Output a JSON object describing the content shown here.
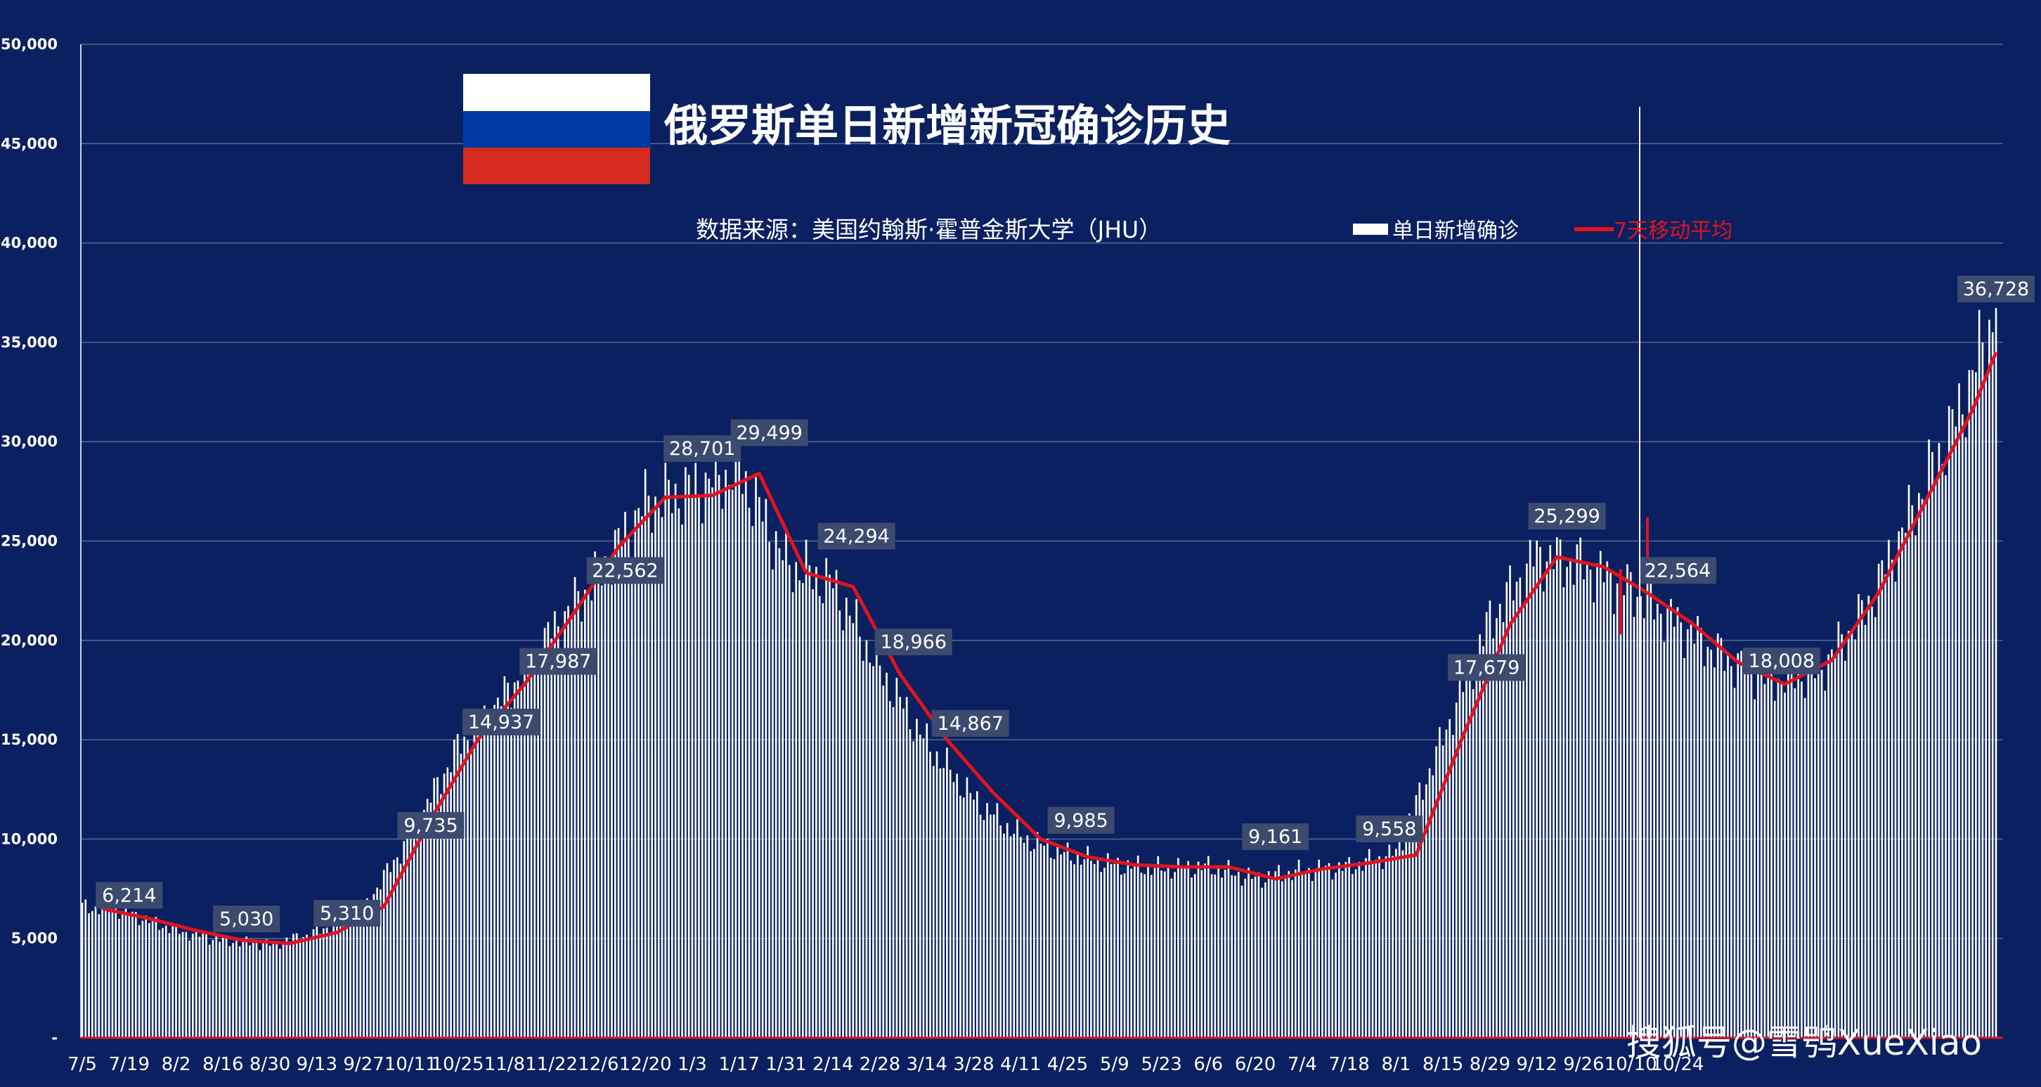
{
  "chart_data": {
    "type": "bar",
    "title": "俄罗斯单日新增新冠确诊历史",
    "source": "数据来源：美国约翰斯·霍普金斯大学（JHU）",
    "legend": [
      {
        "name": "单日新增确诊",
        "color": "#ffffff",
        "kind": "bar"
      },
      {
        "name": "7天移动平均",
        "color": "#e0141e",
        "kind": "line"
      }
    ],
    "x_tick_labels": [
      "7/5",
      "7/19",
      "8/2",
      "8/16",
      "8/30",
      "9/13",
      "9/27",
      "10/11",
      "10/25",
      "11/8",
      "11/22",
      "12/6",
      "12/20",
      "1/3",
      "1/17",
      "1/31",
      "2/14",
      "2/28",
      "3/14",
      "3/28",
      "4/11",
      "4/25",
      "5/9",
      "5/23",
      "6/6",
      "6/20",
      "7/4",
      "7/18",
      "8/1",
      "8/15",
      "8/29",
      "9/12",
      "9/26",
      "10/10",
      "10/24"
    ],
    "ylim": [
      0,
      50000
    ],
    "y_ticks": [
      0,
      5000,
      10000,
      15000,
      20000,
      25000,
      30000,
      35000,
      40000,
      45000,
      50000
    ],
    "y_tick_labels": [
      "-",
      "5,000",
      "10,000",
      "15,000",
      "20,000",
      "25,000",
      "30,000",
      "35,000",
      "40,000",
      "45,000",
      "50,000"
    ],
    "start_date": "7/5",
    "daily_anchors": [
      [
        0,
        6600
      ],
      [
        12,
        6400
      ],
      [
        28,
        5400
      ],
      [
        42,
        4900
      ],
      [
        56,
        4700
      ],
      [
        70,
        5300
      ],
      [
        84,
        6500
      ],
      [
        98,
        10200
      ],
      [
        112,
        14600
      ],
      [
        126,
        17200
      ],
      [
        140,
        20400
      ],
      [
        154,
        23300
      ],
      [
        168,
        26900
      ],
      [
        182,
        27600
      ],
      [
        196,
        28600
      ],
      [
        210,
        23900
      ],
      [
        224,
        22800
      ],
      [
        238,
        18500
      ],
      [
        252,
        14800
      ],
      [
        266,
        12000
      ],
      [
        280,
        10100
      ],
      [
        294,
        9200
      ],
      [
        308,
        8700
      ],
      [
        322,
        8500
      ],
      [
        336,
        8600
      ],
      [
        350,
        8000
      ],
      [
        364,
        8400
      ],
      [
        378,
        8600
      ],
      [
        392,
        9300
      ],
      [
        406,
        15100
      ],
      [
        420,
        21000
      ],
      [
        434,
        24300
      ],
      [
        448,
        23800
      ],
      [
        462,
        22600
      ],
      [
        476,
        20900
      ],
      [
        490,
        19100
      ],
      [
        504,
        18000
      ],
      [
        518,
        18400
      ],
      [
        532,
        21500
      ],
      [
        546,
        26500
      ],
      [
        560,
        31500
      ],
      [
        571,
        36728
      ]
    ],
    "avg_anchors": [
      [
        6,
        6500
      ],
      [
        20,
        6000
      ],
      [
        34,
        5400
      ],
      [
        48,
        4900
      ],
      [
        62,
        4750
      ],
      [
        76,
        5300
      ],
      [
        90,
        6600
      ],
      [
        104,
        11000
      ],
      [
        118,
        15000
      ],
      [
        132,
        17800
      ],
      [
        146,
        21200
      ],
      [
        160,
        24700
      ],
      [
        174,
        27200
      ],
      [
        188,
        27300
      ],
      [
        202,
        28400
      ],
      [
        216,
        23400
      ],
      [
        230,
        22700
      ],
      [
        244,
        18300
      ],
      [
        258,
        15000
      ],
      [
        272,
        12300
      ],
      [
        286,
        10000
      ],
      [
        300,
        9100
      ],
      [
        314,
        8700
      ],
      [
        328,
        8600
      ],
      [
        342,
        8600
      ],
      [
        356,
        8000
      ],
      [
        370,
        8500
      ],
      [
        384,
        8800
      ],
      [
        398,
        9200
      ],
      [
        412,
        15200
      ],
      [
        426,
        20800
      ],
      [
        440,
        24200
      ],
      [
        454,
        23700
      ],
      [
        466,
        22500
      ],
      [
        480,
        20900
      ],
      [
        494,
        18900
      ],
      [
        508,
        17800
      ],
      [
        522,
        19000
      ],
      [
        536,
        22400
      ],
      [
        550,
        27000
      ],
      [
        564,
        31600
      ],
      [
        571,
        34500
      ]
    ],
    "data_labels": [
      {
        "day": 14,
        "value": "6,214"
      },
      {
        "day": 49,
        "value": "5,030"
      },
      {
        "day": 79,
        "value": "5,310"
      },
      {
        "day": 104,
        "value": "9,735"
      },
      {
        "day": 125,
        "value": "14,937"
      },
      {
        "day": 142,
        "value": "17,987"
      },
      {
        "day": 162,
        "value": "22,562"
      },
      {
        "day": 185,
        "value": "28,701"
      },
      {
        "day": 205,
        "value": "29,499"
      },
      {
        "day": 231,
        "value": "24,294"
      },
      {
        "day": 248,
        "value": "18,966"
      },
      {
        "day": 265,
        "value": "14,867"
      },
      {
        "day": 298,
        "value": "9,985"
      },
      {
        "day": 356,
        "value": "9,161"
      },
      {
        "day": 390,
        "value": "9,558"
      },
      {
        "day": 419,
        "value": "17,679"
      },
      {
        "day": 443,
        "value": "25,299"
      },
      {
        "day": 476,
        "value": "22,564"
      },
      {
        "day": 507,
        "value": "18,008"
      },
      {
        "day": 571,
        "value": "36,728"
      }
    ],
    "grid": true
  },
  "watermark": "搜狐号@雪鸮XueXiao",
  "colors": {
    "background": "#0a2060",
    "bar": "#ffffff",
    "line": "#e0141e",
    "gridline": "#56688f",
    "label_box": "#3b4a6e",
    "flag_white": "#ffffff",
    "flag_blue": "#0039a6",
    "flag_red": "#d52b1e"
  }
}
